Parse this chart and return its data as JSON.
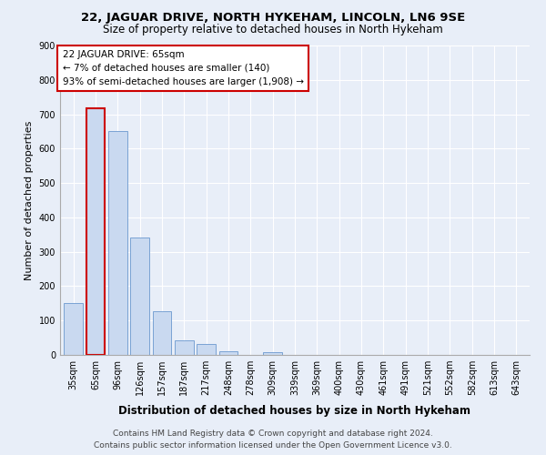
{
  "title": "22, JAGUAR DRIVE, NORTH HYKEHAM, LINCOLN, LN6 9SE",
  "subtitle": "Size of property relative to detached houses in North Hykeham",
  "xlabel": "Distribution of detached houses by size in North Hykeham",
  "ylabel": "Number of detached properties",
  "categories": [
    "35sqm",
    "65sqm",
    "96sqm",
    "126sqm",
    "157sqm",
    "187sqm",
    "217sqm",
    "248sqm",
    "278sqm",
    "309sqm",
    "339sqm",
    "369sqm",
    "400sqm",
    "430sqm",
    "461sqm",
    "491sqm",
    "521sqm",
    "552sqm",
    "582sqm",
    "613sqm",
    "643sqm"
  ],
  "values": [
    152,
    718,
    650,
    342,
    128,
    42,
    32,
    11,
    0,
    8,
    0,
    0,
    0,
    0,
    0,
    0,
    0,
    0,
    0,
    0,
    0
  ],
  "highlight_index": 1,
  "bar_color": "#c9d9f0",
  "bar_edge_color": "#7aa3d4",
  "highlight_bar_color": "#c9d9f0",
  "highlight_bar_edge_color": "#cc0000",
  "annotation_box_text": "22 JAGUAR DRIVE: 65sqm\n← 7% of detached houses are smaller (140)\n93% of semi-detached houses are larger (1,908) →",
  "annotation_box_edge_color": "#cc0000",
  "annotation_box_bg_color": "#ffffff",
  "ylim": [
    0,
    900
  ],
  "yticks": [
    0,
    100,
    200,
    300,
    400,
    500,
    600,
    700,
    800,
    900
  ],
  "footer_line1": "Contains HM Land Registry data © Crown copyright and database right 2024.",
  "footer_line2": "Contains public sector information licensed under the Open Government Licence v3.0.",
  "bg_color": "#e8eef8",
  "plot_bg_color": "#e8eef8",
  "grid_color": "#ffffff",
  "title_fontsize": 9.5,
  "subtitle_fontsize": 8.5,
  "xlabel_fontsize": 8.5,
  "ylabel_fontsize": 8,
  "tick_fontsize": 7,
  "annotation_fontsize": 7.5,
  "footer_fontsize": 6.5
}
